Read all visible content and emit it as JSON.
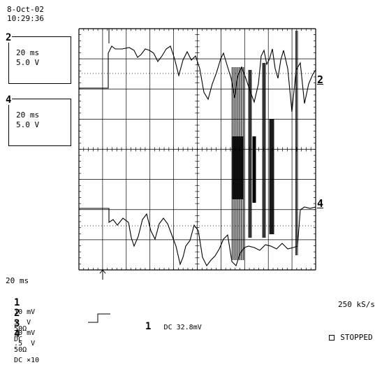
{
  "header": {
    "date": "8-Oct-02",
    "time": "10:29:36"
  },
  "trace_boxes": [
    {
      "number": "2",
      "timebase": "20 ms",
      "volts": "5.0 V"
    },
    {
      "number": "4",
      "timebase": "20 ms",
      "volts": "5.0 V"
    }
  ],
  "trace_markers": {
    "right_2": "2",
    "right_4": "4"
  },
  "footer": {
    "timebase": "20 ms",
    "channels": [
      {
        "number": "1",
        "scale": "10 mV",
        "coupling": "50Ω"
      },
      {
        "number": "2",
        "scale": "5  V",
        "coupling": "DC"
      },
      {
        "number": "3",
        "scale": "10 mV",
        "coupling": "50Ω"
      },
      {
        "number": "4",
        "scale": ".5  V",
        "coupling": "DC ⨯10"
      }
    ],
    "trigger_channel": "1",
    "trigger_level": "DC 32.8mV",
    "sample_rate": "250 kS/s",
    "status": "STOPPED"
  }
}
